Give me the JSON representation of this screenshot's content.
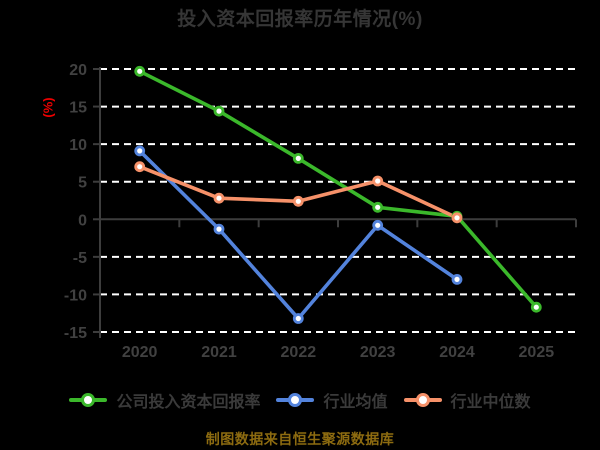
{
  "footer": "制图数据来自恒生聚源数据库",
  "colors": {
    "background": "#000000",
    "title_text": "#363636",
    "tick_label": "#414141",
    "axis_line": "#3d3d3d",
    "gridline": "#ffffff",
    "ylabel_text": "#ee0000",
    "footer_text": "#8d6b10"
  },
  "chart_data": {
    "type": "line",
    "title": "投入资本回报率历年情况(%)",
    "xlabel": "",
    "ylabel": "(%)",
    "categories": [
      "2020",
      "2021",
      "2022",
      "2023",
      "2024",
      "2025"
    ],
    "series": [
      {
        "name": "公司投入资本回报率",
        "color": "#3bb82b",
        "values": [
          19.7,
          14.4,
          8.1,
          1.6,
          0.4,
          -11.7
        ]
      },
      {
        "name": "行业均值",
        "color": "#5383dc",
        "values": [
          9.1,
          -1.3,
          -13.2,
          -0.8,
          -8.0,
          null
        ]
      },
      {
        "name": "行业中位数",
        "color": "#f69169",
        "values": [
          7.0,
          2.8,
          2.4,
          5.1,
          0.2,
          null
        ]
      }
    ],
    "ylim": [
      -15,
      20
    ],
    "yticks": [
      20,
      15,
      10,
      5,
      0,
      -5,
      -10,
      -15
    ],
    "grid": true,
    "grid_style": "dashed-white",
    "marker": "circle-white-fill",
    "legend_position": "bottom"
  }
}
